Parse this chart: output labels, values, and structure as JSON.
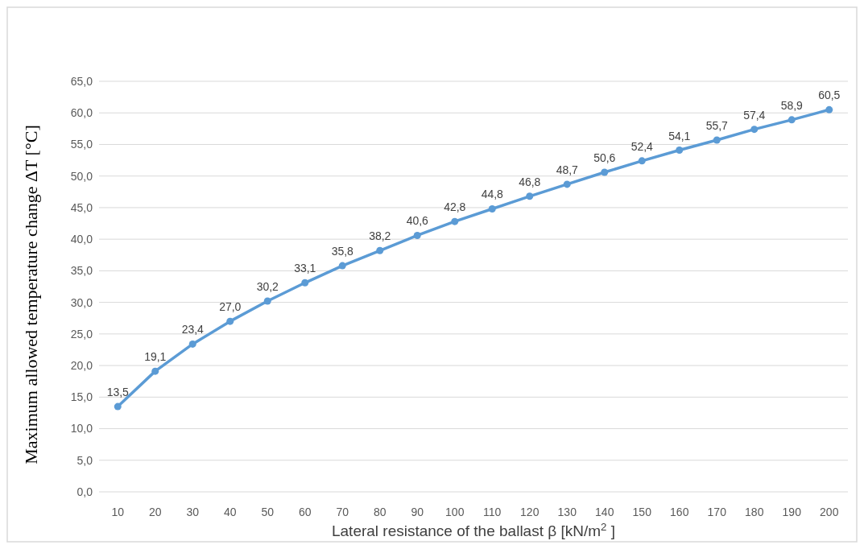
{
  "chart_data": {
    "type": "line",
    "xlabel": "Lateral resistance of the ballast β [kN/m$^{2}$ ]",
    "ylabel": "Maximum allowed temperature change ΔT [°C]",
    "categories": [
      "10",
      "20",
      "30",
      "40",
      "50",
      "60",
      "70",
      "80",
      "90",
      "100",
      "110",
      "120",
      "130",
      "140",
      "150",
      "160",
      "170",
      "180",
      "190",
      "200"
    ],
    "series": [
      {
        "color": "#5b9bd5",
        "values": [
          13.5,
          19.1,
          23.4,
          27.0,
          30.2,
          33.1,
          35.8,
          38.2,
          40.6,
          42.8,
          44.8,
          46.8,
          48.7,
          50.6,
          52.4,
          54.1,
          55.7,
          57.4,
          58.9,
          60.5
        ],
        "value_labels": [
          "13,5",
          "19,1",
          "23,4",
          "27,0",
          "30,2",
          "33,1",
          "35,8",
          "38,2",
          "40,6",
          "42,8",
          "44,8",
          "46,8",
          "48,7",
          "50,6",
          "52,4",
          "54,1",
          "55,7",
          "57,4",
          "58,9",
          "60,5"
        ]
      }
    ],
    "ylim": [
      0,
      65
    ],
    "yticks": [
      {
        "value": 0,
        "label": "0,0"
      },
      {
        "value": 5,
        "label": "5,0"
      },
      {
        "value": 10,
        "label": "10,0"
      },
      {
        "value": 15,
        "label": "15,0"
      },
      {
        "value": 20,
        "label": "20,0"
      },
      {
        "value": 25,
        "label": "25,0"
      },
      {
        "value": 30,
        "label": "30,0"
      },
      {
        "value": 35,
        "label": "35,0"
      },
      {
        "value": 40,
        "label": "40,0"
      },
      {
        "value": 45,
        "label": "45,0"
      },
      {
        "value": 50,
        "label": "50,0"
      },
      {
        "value": 55,
        "label": "55,0"
      },
      {
        "value": 60,
        "label": "60,0"
      },
      {
        "value": 65,
        "label": "65,0"
      }
    ],
    "grid": "y",
    "marker": "circle",
    "line_style": "solid"
  }
}
